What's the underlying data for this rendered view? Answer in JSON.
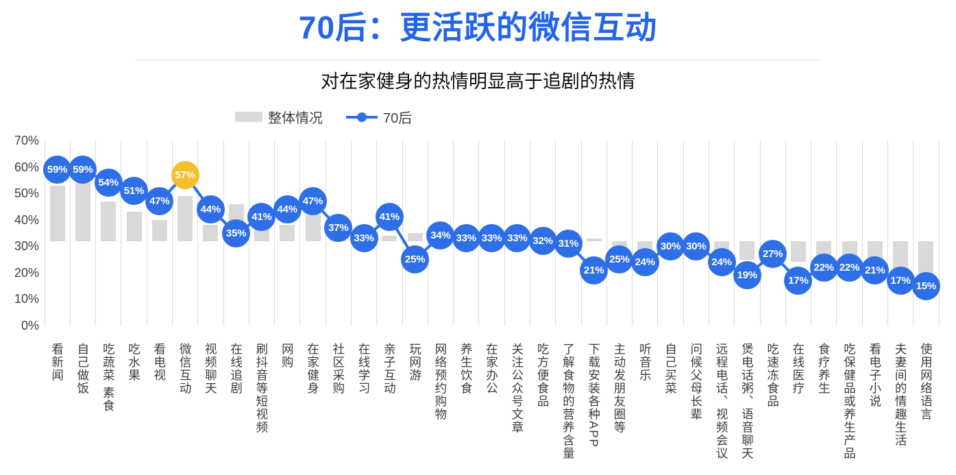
{
  "header": {
    "title": "70后：更活跃的微信互动",
    "subtitle": "对在家健身的热情明显高于追剧的热情"
  },
  "legend": {
    "overall_label": "整体情况",
    "series_label": "70后"
  },
  "y_axis": {
    "tick_labels": [
      "0%",
      "10%",
      "20%",
      "30%",
      "40%",
      "50%",
      "60%",
      "70%"
    ],
    "min": 0,
    "max": 70,
    "step": 10
  },
  "chart_data": {
    "type": "bar+line",
    "title": "70后：更活跃的微信互动",
    "subtitle": "对在家健身的热情明显高于追剧的热情",
    "ylim": [
      0,
      70
    ],
    "grid": "vertical-only",
    "legend_position": "top-left-of-center",
    "categories": [
      "看新闻",
      "自己做饭",
      "吃蔬菜 素食",
      "吃水果",
      "看电视",
      "微信互动",
      "视频聊天",
      "在线追剧",
      "刷抖音等短视频",
      "网购",
      "在家健身",
      "社区采购",
      "在线学习",
      "亲子互动",
      "玩网游",
      "网络预约购物",
      "养生饮食",
      "在家办公",
      "关注公众号文章",
      "吃方便食品",
      "了解食物的营养含量",
      "下载安装各种APP",
      "主动发朋友圈等",
      "听音乐",
      "自己买菜",
      "问候父母长辈",
      "远程电话、视频会议",
      "煲电话粥、语音聊天",
      "吃速冻食品",
      "在线医疗",
      "食疗养生",
      "吃保健品或养生产品",
      "看电子小说",
      "夫妻间的情趣生活",
      "使用网络语言"
    ],
    "series": [
      {
        "name": "整体情况",
        "type": "bar",
        "color": "#d9d9d9",
        "baseline": 32,
        "note": "bars are drawn from the 32% baseline up/down to the value; values estimated from pixels (unlabeled)",
        "values": [
          53,
          54,
          47,
          43,
          40,
          49,
          38,
          46,
          45,
          38,
          42,
          34,
          33,
          34,
          35,
          33,
          33,
          33,
          33,
          33,
          32,
          33,
          29,
          28,
          33,
          33,
          27,
          25,
          27,
          24,
          22,
          24,
          23,
          20,
          19
        ]
      },
      {
        "name": "70后",
        "type": "line",
        "color": "#2e6fe8",
        "highlight_index": 5,
        "highlight_color": "#f6bf2d",
        "values": [
          59,
          59,
          54,
          51,
          47,
          57,
          44,
          35,
          41,
          44,
          47,
          37,
          33,
          41,
          25,
          34,
          33,
          33,
          33,
          32,
          31,
          21,
          25,
          24,
          30,
          30,
          24,
          19,
          27,
          17,
          22,
          22,
          21,
          17,
          15
        ],
        "labels": [
          "59%",
          "59%",
          "54%",
          "51%",
          "47%",
          "57%",
          "44%",
          "35%",
          "41%",
          "44%",
          "47%",
          "37%",
          "33%",
          "41%",
          "25%",
          "34%",
          "33%",
          "33%",
          "33%",
          "32%",
          "31%",
          "21%",
          "25%",
          "24%",
          "30%",
          "30%",
          "24%",
          "19%",
          "27%",
          "17%",
          "22%",
          "22%",
          "21%",
          "17%",
          "15%"
        ]
      }
    ]
  },
  "colors": {
    "title": "#2364eb",
    "accent_blue": "#2e6fe8",
    "highlight_yellow": "#f6bf2d",
    "bar_gray": "#d9d9d9",
    "gridline": "#dbdbdb",
    "axis_text": "#404040",
    "legend_text": "#404040",
    "value_text": "#ffffff"
  }
}
